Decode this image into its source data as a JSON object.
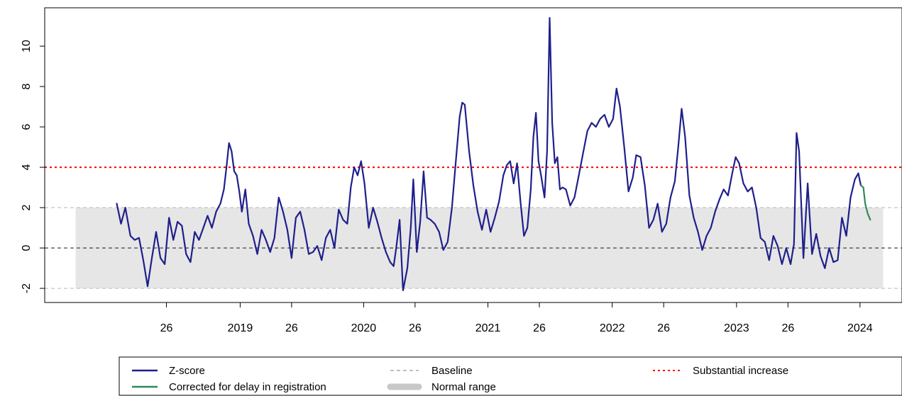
{
  "chart_data": {
    "type": "line",
    "title": "",
    "xlabel": "",
    "ylabel": "",
    "ylim": [
      -2.7,
      11.9
    ],
    "xlim": [
      0,
      100
    ],
    "grid": false,
    "y_ticks": [
      {
        "value": -2,
        "label": "-2"
      },
      {
        "value": 0,
        "label": "0"
      },
      {
        "value": 2,
        "label": "2"
      },
      {
        "value": 4,
        "label": "4"
      },
      {
        "value": 6,
        "label": "6"
      },
      {
        "value": 8,
        "label": "8"
      },
      {
        "value": 10,
        "label": "10"
      }
    ],
    "x_ticks": [
      {
        "pos": 14.2,
        "label": "26"
      },
      {
        "pos": 22.8,
        "label": "2019"
      },
      {
        "pos": 28.8,
        "label": "26"
      },
      {
        "pos": 37.2,
        "label": "2020"
      },
      {
        "pos": 43.2,
        "label": "26"
      },
      {
        "pos": 51.7,
        "label": "2021"
      },
      {
        "pos": 57.7,
        "label": "26"
      },
      {
        "pos": 66.2,
        "label": "2022"
      },
      {
        "pos": 72.2,
        "label": "26"
      },
      {
        "pos": 80.7,
        "label": "2023"
      },
      {
        "pos": 86.7,
        "label": "26"
      },
      {
        "pos": 95.1,
        "label": "2024"
      }
    ],
    "normal_range": {
      "name": "Normal range",
      "low": -2,
      "high": 2,
      "x_start": 3.6,
      "x_end": 97.8,
      "color": "#e6e6e6"
    },
    "reference_lines": [
      {
        "name": "Baseline",
        "value": 0,
        "color": "#333333",
        "style": "dashed"
      },
      {
        "name": "Normal range upper",
        "value": 2,
        "color": "#bdbdbd",
        "style": "dashed"
      },
      {
        "name": "Normal range lower",
        "value": -2,
        "color": "#bdbdbd",
        "style": "dashed"
      },
      {
        "name": "Substantial increase",
        "value": 4,
        "color": "#ff0000",
        "style": "dotted"
      }
    ],
    "series": [
      {
        "name": "Z-score",
        "color": "#1f1f8c",
        "points": [
          [
            8.4,
            2.2
          ],
          [
            8.9,
            1.2
          ],
          [
            9.4,
            2.0
          ],
          [
            10.0,
            0.6
          ],
          [
            10.5,
            0.4
          ],
          [
            11.0,
            0.5
          ],
          [
            11.5,
            -0.6
          ],
          [
            12.0,
            -1.9
          ],
          [
            12.5,
            -0.5
          ],
          [
            13.0,
            0.8
          ],
          [
            13.5,
            -0.5
          ],
          [
            14.0,
            -0.8
          ],
          [
            14.5,
            1.5
          ],
          [
            15.0,
            0.4
          ],
          [
            15.5,
            1.3
          ],
          [
            16.0,
            1.1
          ],
          [
            16.5,
            -0.3
          ],
          [
            17.0,
            -0.7
          ],
          [
            17.5,
            0.8
          ],
          [
            18.0,
            0.4
          ],
          [
            18.5,
            1.0
          ],
          [
            19.0,
            1.6
          ],
          [
            19.5,
            1.0
          ],
          [
            20.0,
            1.8
          ],
          [
            20.5,
            2.2
          ],
          [
            20.9,
            2.9
          ],
          [
            21.2,
            4.0
          ],
          [
            21.5,
            5.2
          ],
          [
            21.8,
            4.8
          ],
          [
            22.1,
            3.8
          ],
          [
            22.4,
            3.6
          ],
          [
            22.7,
            2.8
          ],
          [
            23.0,
            1.8
          ],
          [
            23.4,
            2.9
          ],
          [
            23.8,
            1.2
          ],
          [
            24.3,
            0.6
          ],
          [
            24.8,
            -0.3
          ],
          [
            25.3,
            0.9
          ],
          [
            25.8,
            0.4
          ],
          [
            26.3,
            -0.2
          ],
          [
            26.8,
            0.5
          ],
          [
            27.3,
            2.5
          ],
          [
            27.8,
            1.8
          ],
          [
            28.3,
            0.9
          ],
          [
            28.8,
            -0.5
          ],
          [
            29.3,
            1.5
          ],
          [
            29.8,
            1.8
          ],
          [
            30.3,
            0.9
          ],
          [
            30.8,
            -0.3
          ],
          [
            31.3,
            -0.2
          ],
          [
            31.8,
            0.1
          ],
          [
            32.3,
            -0.6
          ],
          [
            32.8,
            0.5
          ],
          [
            33.3,
            0.9
          ],
          [
            33.8,
            0.0
          ],
          [
            34.3,
            1.9
          ],
          [
            34.8,
            1.4
          ],
          [
            35.3,
            1.2
          ],
          [
            35.7,
            3.0
          ],
          [
            36.1,
            4.0
          ],
          [
            36.5,
            3.6
          ],
          [
            36.9,
            4.3
          ],
          [
            37.3,
            3.2
          ],
          [
            37.8,
            1.0
          ],
          [
            38.3,
            2.0
          ],
          [
            38.8,
            1.3
          ],
          [
            39.3,
            0.5
          ],
          [
            39.8,
            -0.2
          ],
          [
            40.3,
            -0.7
          ],
          [
            40.7,
            -0.9
          ],
          [
            41.0,
            0.0
          ],
          [
            41.4,
            1.4
          ],
          [
            41.8,
            -2.1
          ],
          [
            42.3,
            -1.0
          ],
          [
            42.7,
            1.0
          ],
          [
            43.0,
            3.4
          ],
          [
            43.4,
            -0.2
          ],
          [
            43.8,
            1.3
          ],
          [
            44.2,
            3.8
          ],
          [
            44.6,
            1.5
          ],
          [
            45.0,
            1.4
          ],
          [
            45.5,
            1.2
          ],
          [
            46.0,
            0.8
          ],
          [
            46.5,
            -0.1
          ],
          [
            47.0,
            0.3
          ],
          [
            47.5,
            2.0
          ],
          [
            48.0,
            4.5
          ],
          [
            48.4,
            6.5
          ],
          [
            48.7,
            7.2
          ],
          [
            49.0,
            7.1
          ],
          [
            49.5,
            4.8
          ],
          [
            50.0,
            3.1
          ],
          [
            50.5,
            1.8
          ],
          [
            51.0,
            0.9
          ],
          [
            51.5,
            1.9
          ],
          [
            52.0,
            0.8
          ],
          [
            52.5,
            1.5
          ],
          [
            53.0,
            2.3
          ],
          [
            53.5,
            3.6
          ],
          [
            53.9,
            4.1
          ],
          [
            54.3,
            4.3
          ],
          [
            54.7,
            3.2
          ],
          [
            55.1,
            4.2
          ],
          [
            55.5,
            2.3
          ],
          [
            55.9,
            0.6
          ],
          [
            56.3,
            1.0
          ],
          [
            56.7,
            2.9
          ],
          [
            57.0,
            5.5
          ],
          [
            57.3,
            6.7
          ],
          [
            57.6,
            4.3
          ],
          [
            57.9,
            3.6
          ],
          [
            58.3,
            2.5
          ],
          [
            58.6,
            4.8
          ],
          [
            58.9,
            11.4
          ],
          [
            59.2,
            6.2
          ],
          [
            59.5,
            4.2
          ],
          [
            59.8,
            4.5
          ],
          [
            60.1,
            2.9
          ],
          [
            60.4,
            3.0
          ],
          [
            60.8,
            2.9
          ],
          [
            61.3,
            2.1
          ],
          [
            61.8,
            2.5
          ],
          [
            62.3,
            3.6
          ],
          [
            62.8,
            4.7
          ],
          [
            63.3,
            5.8
          ],
          [
            63.8,
            6.2
          ],
          [
            64.3,
            6.0
          ],
          [
            64.8,
            6.4
          ],
          [
            65.3,
            6.6
          ],
          [
            65.8,
            6.0
          ],
          [
            66.3,
            6.4
          ],
          [
            66.7,
            7.9
          ],
          [
            67.1,
            7.0
          ],
          [
            67.6,
            5.0
          ],
          [
            68.1,
            2.8
          ],
          [
            68.6,
            3.5
          ],
          [
            69.0,
            4.6
          ],
          [
            69.5,
            4.5
          ],
          [
            70.0,
            3.1
          ],
          [
            70.5,
            1.0
          ],
          [
            71.0,
            1.4
          ],
          [
            71.5,
            2.2
          ],
          [
            72.0,
            0.8
          ],
          [
            72.5,
            1.2
          ],
          [
            73.0,
            2.5
          ],
          [
            73.5,
            3.3
          ],
          [
            73.9,
            5.0
          ],
          [
            74.3,
            6.9
          ],
          [
            74.7,
            5.5
          ],
          [
            75.2,
            2.6
          ],
          [
            75.7,
            1.5
          ],
          [
            76.2,
            0.8
          ],
          [
            76.7,
            -0.1
          ],
          [
            77.2,
            0.6
          ],
          [
            77.7,
            1.0
          ],
          [
            78.2,
            1.8
          ],
          [
            78.7,
            2.4
          ],
          [
            79.2,
            2.9
          ],
          [
            79.7,
            2.6
          ],
          [
            80.2,
            3.7
          ],
          [
            80.6,
            4.5
          ],
          [
            81.0,
            4.2
          ],
          [
            81.5,
            3.2
          ],
          [
            82.0,
            2.8
          ],
          [
            82.5,
            3.0
          ],
          [
            83.0,
            2.0
          ],
          [
            83.5,
            0.5
          ],
          [
            84.0,
            0.3
          ],
          [
            84.5,
            -0.6
          ],
          [
            85.0,
            0.6
          ],
          [
            85.5,
            0.1
          ],
          [
            86.0,
            -0.8
          ],
          [
            86.5,
            0.0
          ],
          [
            87.0,
            -0.8
          ],
          [
            87.4,
            0.2
          ],
          [
            87.7,
            5.7
          ],
          [
            88.0,
            4.8
          ],
          [
            88.5,
            -0.5
          ],
          [
            89.0,
            3.2
          ],
          [
            89.5,
            -0.3
          ],
          [
            90.0,
            0.7
          ],
          [
            90.5,
            -0.4
          ],
          [
            91.0,
            -1.0
          ],
          [
            91.5,
            0.0
          ],
          [
            92.0,
            -0.7
          ],
          [
            92.5,
            -0.6
          ],
          [
            93.0,
            1.5
          ],
          [
            93.5,
            0.6
          ],
          [
            94.0,
            2.5
          ],
          [
            94.5,
            3.4
          ],
          [
            94.9,
            3.7
          ],
          [
            95.2,
            3.1
          ]
        ]
      },
      {
        "name": "Corrected for delay in registration",
        "color": "#2e8b57",
        "points": [
          [
            95.2,
            3.1
          ],
          [
            95.5,
            3.0
          ],
          [
            95.7,
            2.2
          ],
          [
            96.0,
            1.7
          ],
          [
            96.3,
            1.4
          ]
        ]
      }
    ],
    "legend": {
      "position": "bottom",
      "entries": [
        {
          "label": "Z-score",
          "color": "#1f1f8c",
          "style": "solid"
        },
        {
          "label": "Corrected for delay in registration",
          "color": "#2e8b57",
          "style": "solid"
        },
        {
          "label": "Baseline",
          "color": "#999999",
          "style": "dashed"
        },
        {
          "label": "Normal range",
          "color": "#c8c8c8",
          "style": "band"
        },
        {
          "label": "Substantial increase",
          "color": "#ff0000",
          "style": "dotted"
        }
      ]
    }
  }
}
